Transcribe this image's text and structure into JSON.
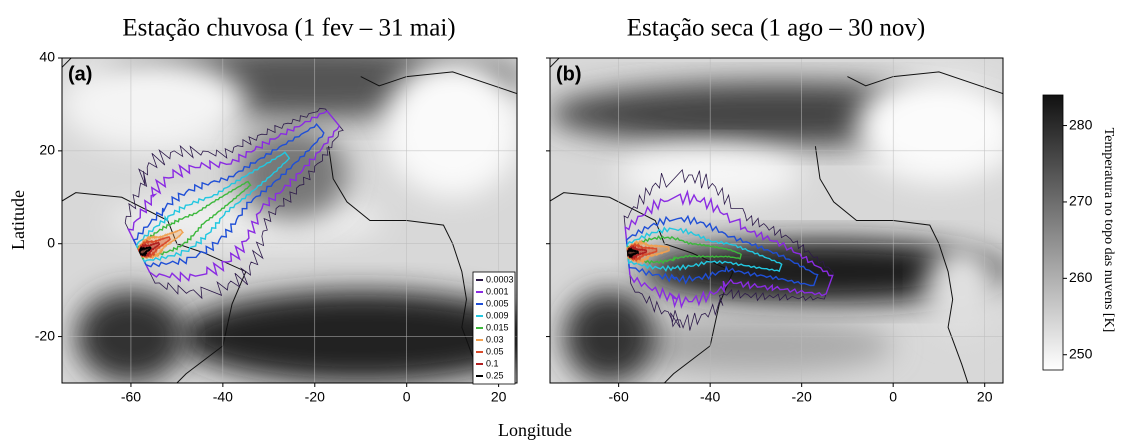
{
  "panels": [
    {
      "title": "Estação chuvosa (1 fev – 31 mai)",
      "label": "(a)"
    },
    {
      "title": "Estação seca (1 ago – 30 nov)",
      "label": "(b)"
    }
  ],
  "x_label": "Longitude",
  "y_label": "Latitude",
  "xlim": [
    -75,
    24
  ],
  "xticks": [
    -60,
    -40,
    -20,
    0,
    20
  ],
  "ylim": [
    -30,
    40
  ],
  "yticks": [
    -20,
    0,
    20,
    40
  ],
  "legend": {
    "entries": [
      {
        "value": 0.0003,
        "color": "#2d1a4a"
      },
      {
        "value": 0.001,
        "color": "#8a2be2"
      },
      {
        "value": 0.005,
        "color": "#1f4fd6"
      },
      {
        "value": 0.009,
        "color": "#22c7e0"
      },
      {
        "value": 0.015,
        "color": "#3cb83c"
      },
      {
        "value": 0.03,
        "color": "#f0a050"
      },
      {
        "value": 0.05,
        "color": "#d94b2b"
      },
      {
        "value": 0.1,
        "color": "#b02020"
      },
      {
        "value": 0.25,
        "color": "#000000"
      }
    ]
  },
  "colorbar": {
    "label": "Temperatura no topo das nuvens [K]",
    "lim": [
      248,
      284
    ],
    "ticks": [
      250,
      260,
      270,
      280
    ]
  }
}
